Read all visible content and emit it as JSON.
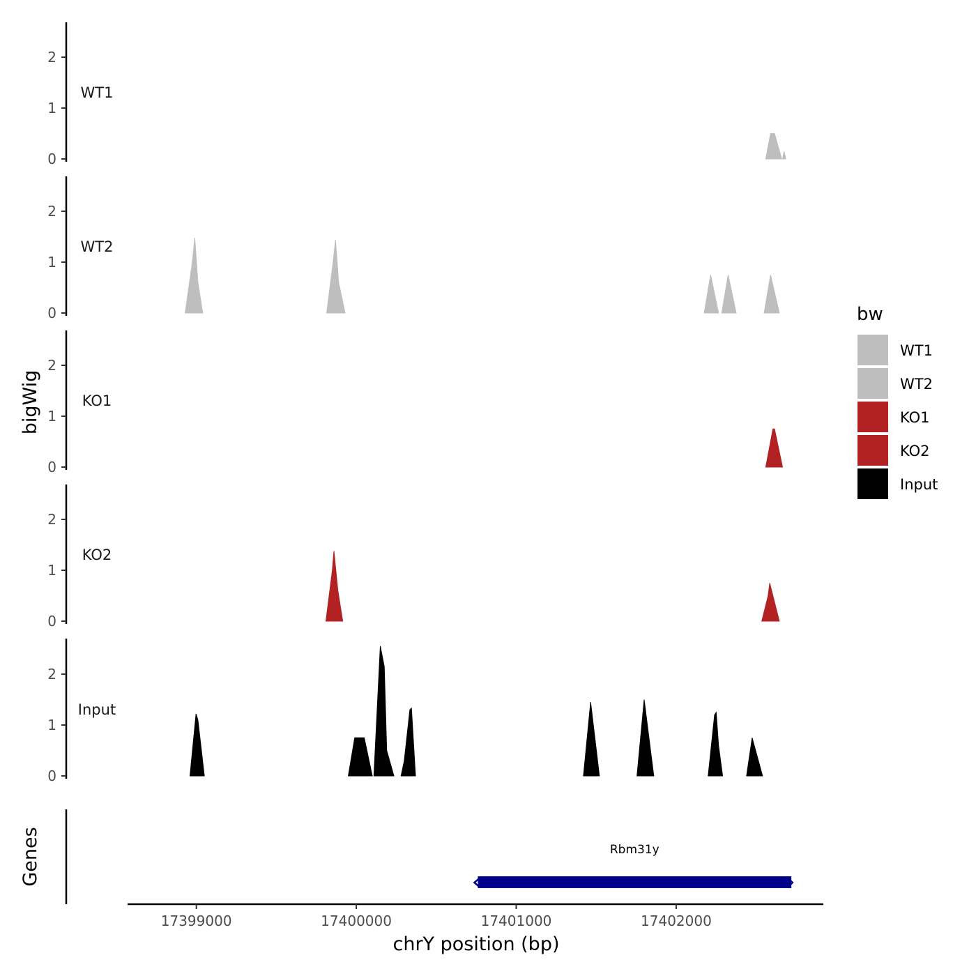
{
  "chart_data": {
    "type": "area",
    "ylabel": "bigWig",
    "xlabel": "chrY position (bp)",
    "xlim": [
      17398570,
      17402920
    ],
    "ylim": [
      0,
      2.7
    ],
    "y_ticks": [
      0,
      1,
      2
    ],
    "x_ticks": [
      17399000,
      17400000,
      17401000,
      17402000
    ],
    "legend": {
      "title": "bw",
      "position": "right",
      "entries": [
        {
          "label": "WT1",
          "color": "#bebebe"
        },
        {
          "label": "WT2",
          "color": "#bebebe"
        },
        {
          "label": "KO1",
          "color": "#b22222"
        },
        {
          "label": "KO2",
          "color": "#b22222"
        },
        {
          "label": "Input",
          "color": "#000000"
        }
      ]
    },
    "tracks": [
      {
        "name": "WT1",
        "color": "#bebebe",
        "peaks": [
          {
            "x": [
              17402560,
              17402590,
              17402615,
              17402660
            ],
            "y": [
              0,
              0.5,
              0.5,
              0
            ]
          },
          {
            "x": [
              17402665,
              17402675,
              17402685
            ],
            "y": [
              0,
              0.15,
              0
            ]
          }
        ]
      },
      {
        "name": "WT2",
        "color": "#bebebe",
        "peaks": [
          {
            "x": [
              17398930,
              17398975,
              17398990,
              17399010,
              17399040
            ],
            "y": [
              0,
              1.0,
              1.48,
              0.6,
              0
            ]
          },
          {
            "x": [
              17399815,
              17399855,
              17399870,
              17399890,
              17399930
            ],
            "y": [
              0,
              1.0,
              1.44,
              0.6,
              0
            ]
          },
          {
            "x": [
              17402175,
              17402215,
              17402265
            ],
            "y": [
              0,
              0.75,
              0
            ]
          },
          {
            "x": [
              17402285,
              17402325,
              17402375
            ],
            "y": [
              0,
              0.75,
              0
            ]
          },
          {
            "x": [
              17402550,
              17402590,
              17402645
            ],
            "y": [
              0,
              0.75,
              0
            ]
          }
        ]
      },
      {
        "name": "KO1",
        "color": "#b22222",
        "peaks": [
          {
            "x": [
              17402560,
              17402605,
              17402615,
              17402665
            ],
            "y": [
              0,
              0.75,
              0.75,
              0
            ]
          }
        ]
      },
      {
        "name": "KO2",
        "color": "#b22222",
        "peaks": [
          {
            "x": [
              17399810,
              17399850,
              17399860,
              17399885,
              17399915
            ],
            "y": [
              0,
              1.0,
              1.38,
              0.6,
              0
            ]
          },
          {
            "x": [
              17402535,
              17402575,
              17402585,
              17402645
            ],
            "y": [
              0,
              0.5,
              0.75,
              0
            ]
          }
        ]
      },
      {
        "name": "Input",
        "color": "#000000",
        "peaks": [
          {
            "x": [
              17398960,
              17398985,
              17398998,
              17399010,
              17399050
            ],
            "y": [
              0,
              0.8,
              1.22,
              1.1,
              0
            ]
          },
          {
            "x": [
              17399950,
              17399990,
              17400050,
              17400100
            ],
            "y": [
              0,
              0.75,
              0.75,
              0
            ]
          },
          {
            "x": [
              17400110,
              17400150,
              17400175,
              17400190,
              17400235
            ],
            "y": [
              0,
              2.55,
              2.15,
              0.5,
              0
            ]
          },
          {
            "x": [
              17400280,
              17400300,
              17400335,
              17400345,
              17400370
            ],
            "y": [
              0,
              0.3,
              1.3,
              1.33,
              0
            ]
          },
          {
            "x": [
              17401420,
              17401465,
              17401520
            ],
            "y": [
              0,
              1.45,
              0
            ]
          },
          {
            "x": [
              17401755,
              17401800,
              17401860
            ],
            "y": [
              0,
              1.5,
              0
            ]
          },
          {
            "x": [
              17402200,
              17402240,
              17402250,
              17402265,
              17402290
            ],
            "y": [
              0,
              1.2,
              1.25,
              0.6,
              0
            ]
          },
          {
            "x": [
              17402440,
              17402475,
              17402540
            ],
            "y": [
              0,
              0.75,
              0
            ]
          }
        ]
      }
    ],
    "genes": {
      "label": "Genes",
      "items": [
        {
          "name": "Rbm31y",
          "start": 17400760,
          "end": 17402720,
          "strand": "-",
          "color": "#00008b"
        }
      ]
    }
  }
}
